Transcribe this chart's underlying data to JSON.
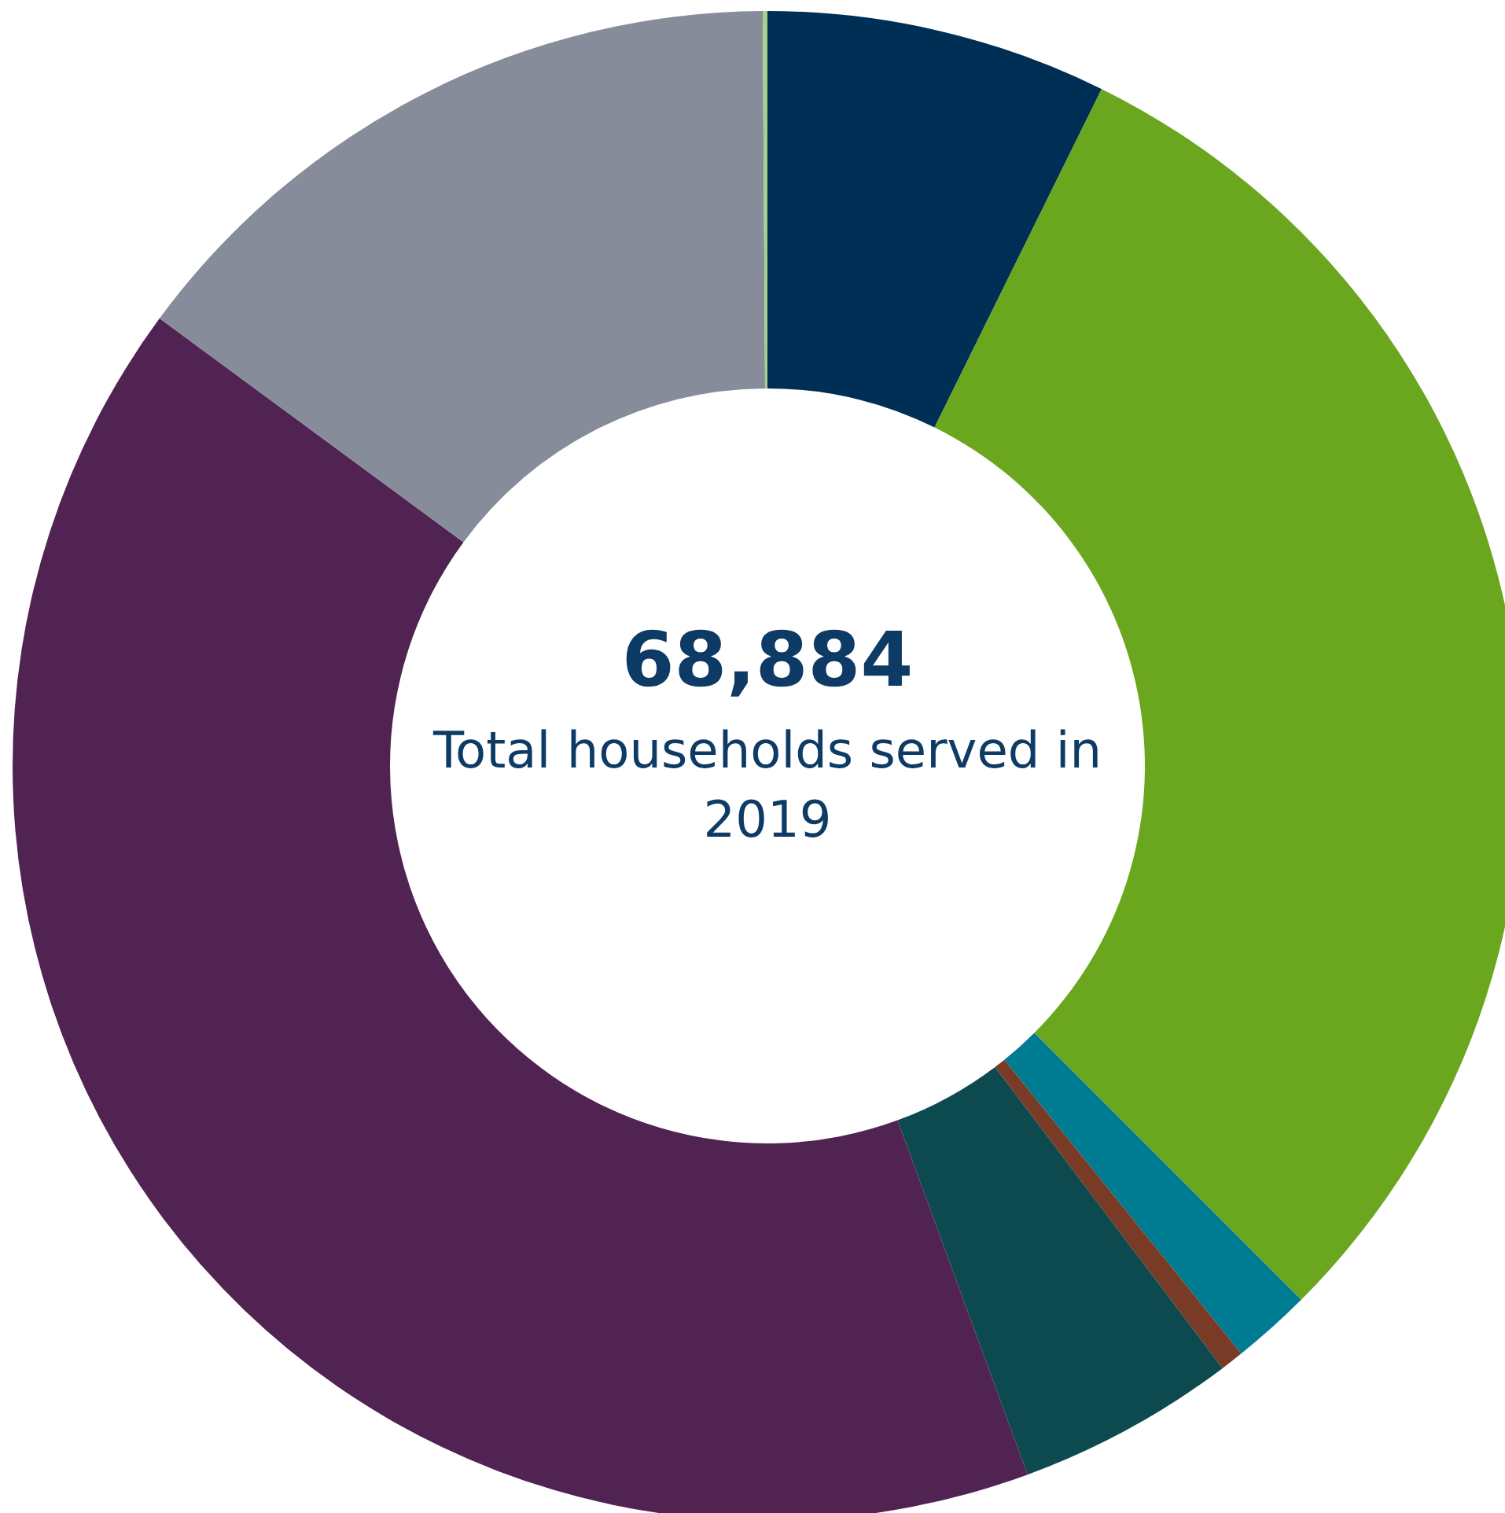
{
  "chart_data": {
    "type": "donut",
    "categories": [
      null,
      null,
      null,
      null,
      null,
      null,
      null,
      null
    ],
    "values": [
      7.3,
      30.2,
      1.7,
      0.5,
      4.7,
      40.7,
      14.8,
      0.1
    ],
    "colors": [
      "#002f56",
      "#6aa71e",
      "#007c92",
      "#7a3b26",
      "#0d4a50",
      "#512352",
      "#868c9a",
      "#a8d08d"
    ],
    "annotations": [
      "68,884",
      "Total households served in 2019"
    ]
  }
}
